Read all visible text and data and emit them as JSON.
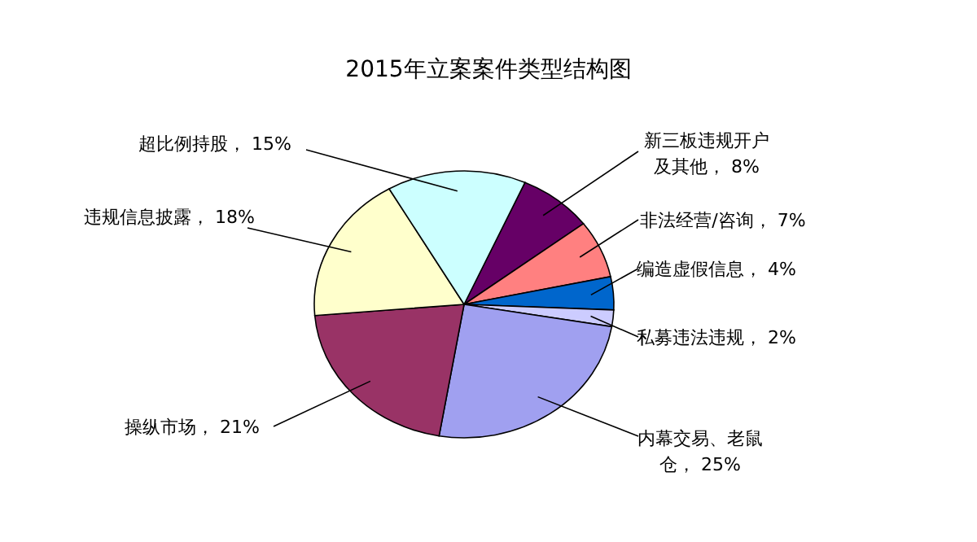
{
  "chart_data": {
    "type": "pie",
    "title": "2015年立案案件类型结构图",
    "categories": [
      "新三板违规开户及其他",
      "非法经营/咨询",
      "编造虚假信息",
      "私募违法违规",
      "内幕交易、老鼠仓",
      "操纵市场",
      "违规信息披露",
      "超比例持股"
    ],
    "values": [
      8,
      7,
      4,
      2,
      25,
      21,
      18,
      15
    ],
    "value_labels": [
      "8%",
      "7%",
      "4%",
      "2%",
      "25%",
      "21%",
      "18%",
      "15%"
    ],
    "colors": [
      "#660066",
      "#ff8080",
      "#0066cc",
      "#ccccff",
      "#a0a0f0",
      "#993366",
      "#ffffcc",
      "#ccffff"
    ]
  }
}
